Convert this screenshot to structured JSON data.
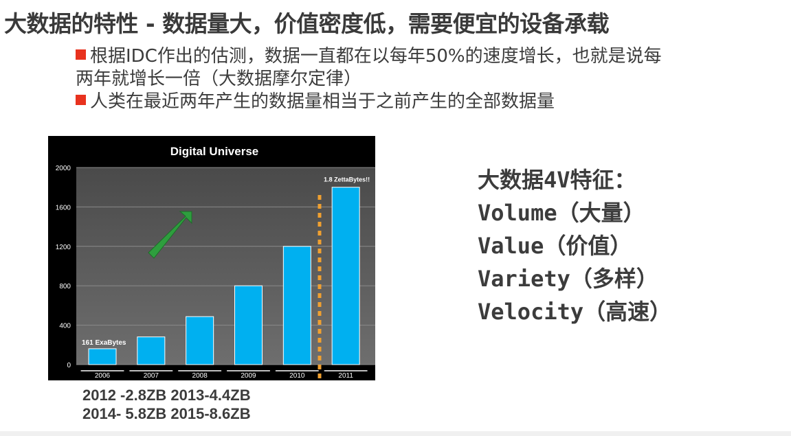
{
  "slide": {
    "title": "大数据的特性 - 数据量大，价值密度低，需要便宜的设备承载",
    "bullets": [
      "根据IDC作出的估测，数据一直都在以每年50%的速度增长，也就是说每",
      "两年就增长一倍（大数据摩尔定律）",
      "人类在最近两年产生的数据量相当于之前产生的全部数据量"
    ],
    "future_values": [
      "2012 -2.8ZB 2013-4.4ZB",
      "2014- 5.8ZB 2015-8.6ZB"
    ],
    "features": [
      "大数据4V特征：",
      "Volume（大量）",
      "Value（价值）",
      "Variety（多样）",
      "Velocity（高速）"
    ],
    "colors": {
      "bullet_marker": "#e8321e",
      "bar": "#00b0f0",
      "arrow": "#2e9e3e",
      "dashed_line": "#f0a030"
    }
  },
  "chart_data": {
    "type": "bar",
    "title": "Digital Universe",
    "categories": [
      "2006",
      "2007",
      "2008",
      "2009",
      "2010",
      "2011"
    ],
    "values": [
      161,
      281,
      487,
      800,
      1200,
      1800
    ],
    "ylim": [
      0,
      2000
    ],
    "yticks": [
      "0",
      "400",
      "800",
      "1200",
      "1600",
      "2000"
    ],
    "annotations": {
      "first_bar": "161 ExaBytes",
      "last_bar": "1.8 ZettaBytes!!"
    },
    "grid": true,
    "legend": "none"
  }
}
